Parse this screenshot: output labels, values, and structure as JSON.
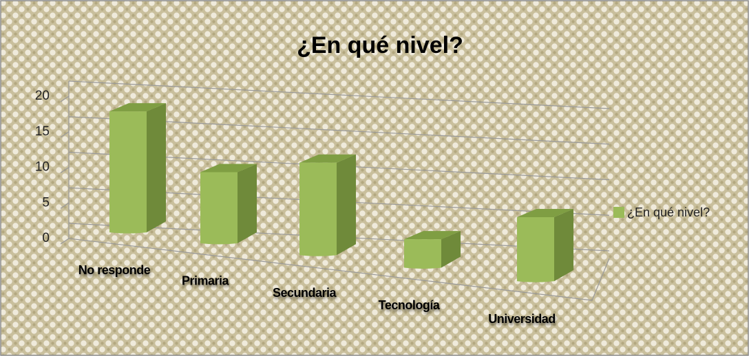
{
  "chart_data": {
    "type": "bar",
    "title": "¿En qué nivel?",
    "categories": [
      "No responde",
      "Primaria",
      "Secundaria",
      "Tecnología",
      "Universidad"
    ],
    "series": [
      {
        "name": "¿En qué nivel?",
        "color": "#9bbb59",
        "values": [
          17,
          10,
          13,
          4,
          9
        ]
      }
    ],
    "ylim": [
      0,
      20
    ],
    "yticks": [
      0,
      5,
      10,
      15,
      20
    ],
    "grid": true,
    "legend": "right"
  }
}
